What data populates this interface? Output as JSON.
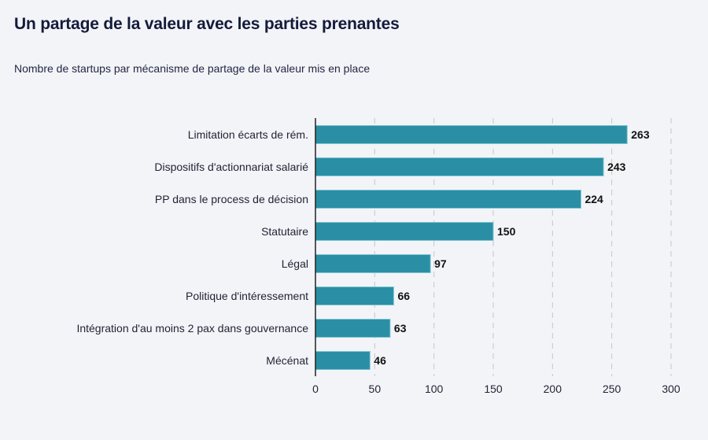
{
  "chart_data": {
    "type": "bar",
    "orientation": "horizontal",
    "title": "Un partage de la valeur avec les parties prenantes",
    "subtitle": "Nombre de startups par mécanisme de partage de la valeur mis en place",
    "categories": [
      "Limitation écarts de rém.",
      "Dispositifs d'actionnariat salarié",
      "PP dans le process de décision",
      "Statutaire",
      "Légal",
      "Politique d'intéressement",
      "Intégration d'au moins 2 pax dans gouvernance",
      "Mécénat"
    ],
    "values": [
      263,
      243,
      224,
      150,
      97,
      66,
      63,
      46
    ],
    "xlabel": "",
    "ylabel": "",
    "xlim": [
      0,
      300
    ],
    "xticks": [
      "0",
      "50",
      "100",
      "150",
      "200",
      "250",
      "300"
    ],
    "grid": "vertical dashed",
    "bar_color": "#2a8fa5",
    "data_labels": true
  }
}
